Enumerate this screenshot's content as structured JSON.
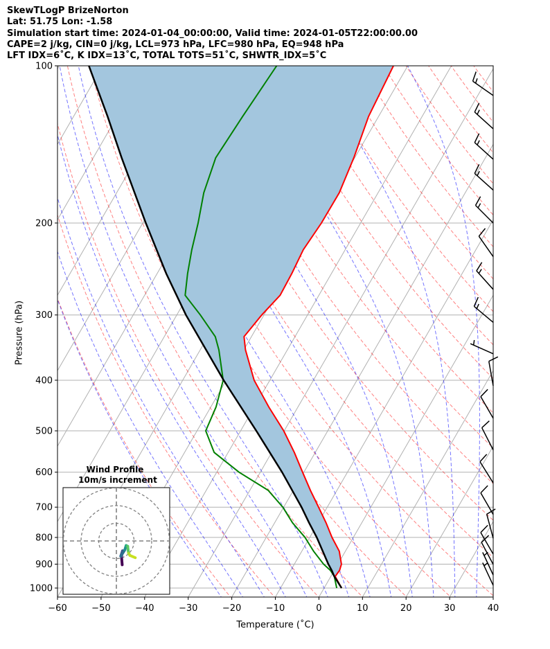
{
  "chart_data": {
    "type": "line",
    "title_lines": [
      "SkewTLogP BrizeNorton",
      "Lat: 51.75   Lon: -1.58",
      "Simulation start time: 2024-01-04_00:00:00, Valid time: 2024-01-05T22:00:00.00",
      "CAPE=2 j/kg, CIN=0 j/kg, LCL=973 hPa, LFC=980 hPa, EQ=948 hPa",
      "LFT IDX=6˚C, K IDX=13˚C, TOTAL TOTS=51˚C, SHWTR_IDX=5˚C"
    ],
    "xlabel": "Temperature (˚C)",
    "ylabel": "Pressure (hPa)",
    "xlim": [
      -60,
      40
    ],
    "ylim": [
      1040,
      100
    ],
    "xticks": [
      -60,
      -50,
      -40,
      -30,
      -20,
      -10,
      0,
      10,
      20,
      30,
      40
    ],
    "yticks": [
      100,
      200,
      300,
      400,
      500,
      600,
      700,
      800,
      900,
      1000
    ],
    "grid": true,
    "skew_deg": 30,
    "series": [
      {
        "name": "Temperature",
        "color": "#ff0000",
        "points": [
          [
            1000,
            4.0
          ],
          [
            950,
            1.0
          ],
          [
            925,
            1.2
          ],
          [
            900,
            0.8
          ],
          [
            850,
            -1.4
          ],
          [
            800,
            -4.9
          ],
          [
            750,
            -8.2
          ],
          [
            700,
            -12.0
          ],
          [
            650,
            -16.1
          ],
          [
            600,
            -20.3
          ],
          [
            550,
            -24.8
          ],
          [
            500,
            -30.1
          ],
          [
            450,
            -36.7
          ],
          [
            400,
            -43.6
          ],
          [
            350,
            -49.6
          ],
          [
            330,
            -51.7
          ],
          [
            300,
            -50.5
          ],
          [
            275,
            -48.9
          ],
          [
            250,
            -49.1
          ],
          [
            225,
            -49.6
          ],
          [
            200,
            -49.0
          ],
          [
            175,
            -48.9
          ],
          [
            150,
            -50.2
          ],
          [
            125,
            -52.3
          ],
          [
            100,
            -53.3
          ]
        ]
      },
      {
        "name": "Dewpoint",
        "color": "#008000",
        "points": [
          [
            1000,
            2.9
          ],
          [
            950,
            0.8
          ],
          [
            925,
            -0.9
          ],
          [
            900,
            -3.3
          ],
          [
            850,
            -7.3
          ],
          [
            800,
            -11.1
          ],
          [
            750,
            -15.9
          ],
          [
            700,
            -20.2
          ],
          [
            650,
            -25.8
          ],
          [
            600,
            -34.9
          ],
          [
            550,
            -43.2
          ],
          [
            500,
            -48.0
          ],
          [
            450,
            -48.8
          ],
          [
            400,
            -50.7
          ],
          [
            350,
            -55.7
          ],
          [
            330,
            -58.3
          ],
          [
            300,
            -64.6
          ],
          [
            275,
            -70.7
          ],
          [
            250,
            -73.0
          ],
          [
            225,
            -75.2
          ],
          [
            200,
            -77.3
          ],
          [
            175,
            -80.0
          ],
          [
            150,
            -81.9
          ],
          [
            125,
            -81.2
          ],
          [
            100,
            -80.1
          ]
        ]
      },
      {
        "name": "Parcel",
        "color": "#000000",
        "points": [
          [
            1000,
            4.0
          ],
          [
            950,
            0.8
          ],
          [
            925,
            -0.6
          ],
          [
            900,
            -2.2
          ],
          [
            850,
            -5.2
          ],
          [
            800,
            -8.4
          ],
          [
            750,
            -12.1
          ],
          [
            700,
            -15.9
          ],
          [
            600,
            -25.0
          ],
          [
            500,
            -36.4
          ],
          [
            400,
            -50.6
          ],
          [
            300,
            -67.9
          ],
          [
            250,
            -77.9
          ],
          [
            200,
            -89.3
          ],
          [
            150,
            -103.5
          ],
          [
            125,
            -112.2
          ],
          [
            100,
            -123.2
          ]
        ]
      }
    ],
    "shading_color": "#a3c6de",
    "dry_adiabats_K": [
      250,
      260,
      270,
      280,
      290,
      300,
      310,
      320,
      330,
      340,
      350,
      360,
      370,
      380,
      390,
      400,
      410,
      420,
      430,
      440,
      450,
      460,
      470,
      480
    ],
    "moist_adiabats_start_C": [
      -25,
      -20,
      -15,
      -10,
      -5,
      0,
      5,
      10,
      15,
      20,
      25,
      30,
      35
    ],
    "wind_barbs": [
      {
        "p": 988,
        "speed_kt": 5,
        "dir": 335
      },
      {
        "p": 944,
        "speed_kt": 5,
        "dir": 335
      },
      {
        "p": 901,
        "speed_kt": 10,
        "dir": 332
      },
      {
        "p": 861,
        "speed_kt": 10,
        "dir": 330
      },
      {
        "p": 803,
        "speed_kt": 10,
        "dir": 345
      },
      {
        "p": 723,
        "speed_kt": 10,
        "dir": 330
      },
      {
        "p": 629,
        "speed_kt": 10,
        "dir": 328
      },
      {
        "p": 544,
        "speed_kt": 10,
        "dir": 333
      },
      {
        "p": 473,
        "speed_kt": 10,
        "dir": 330
      },
      {
        "p": 410,
        "speed_kt": 10,
        "dir": 350
      },
      {
        "p": 356,
        "speed_kt": 5,
        "dir": 294
      },
      {
        "p": 310,
        "speed_kt": 15,
        "dir": 310
      },
      {
        "p": 268,
        "speed_kt": 15,
        "dir": 318
      },
      {
        "p": 232,
        "speed_kt": 10,
        "dir": 325
      },
      {
        "p": 200,
        "speed_kt": 15,
        "dir": 315
      },
      {
        "p": 173,
        "speed_kt": 15,
        "dir": 312
      },
      {
        "p": 151,
        "speed_kt": 15,
        "dir": 312
      },
      {
        "p": 132,
        "speed_kt": 15,
        "dir": 312
      },
      {
        "p": 114,
        "speed_kt": 15,
        "dir": 305
      }
    ],
    "hodograph": {
      "title": "Wind Profile",
      "subtitle": "10m/s increment",
      "rings_ms": [
        10,
        20,
        30
      ],
      "uv_ms": [
        [
          3.3,
          -13.5
        ],
        [
          2.9,
          -8.9
        ],
        [
          3.5,
          -5.6
        ],
        [
          2.5,
          -8.6
        ],
        [
          4.8,
          -5.0
        ],
        [
          5.5,
          -2.6
        ],
        [
          6.4,
          -3.0
        ],
        [
          6.9,
          -6.9
        ],
        [
          7.7,
          -8.2
        ],
        [
          10.7,
          -9.5
        ]
      ]
    }
  }
}
